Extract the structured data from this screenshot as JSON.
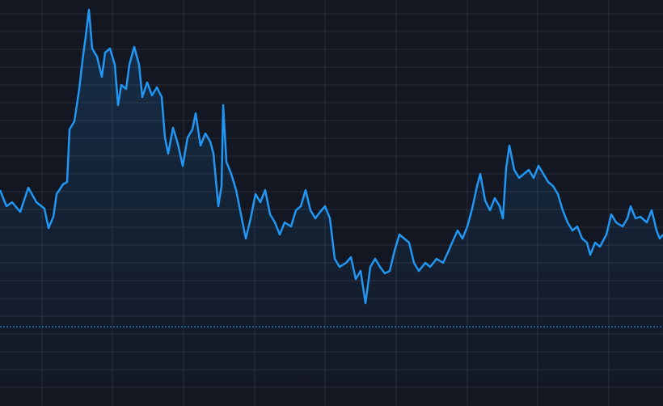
{
  "chart_data": {
    "type": "area-line",
    "color": "#2196f3",
    "x": [
      0,
      8,
      15,
      25,
      35,
      45,
      55,
      60,
      66,
      70,
      78,
      83,
      86,
      92,
      98,
      102,
      106,
      110,
      114,
      120,
      126,
      130,
      136,
      142,
      146,
      150,
      156,
      160,
      166,
      172,
      176,
      182,
      188,
      194,
      200,
      204,
      208,
      214,
      220,
      226,
      232,
      238,
      242,
      248,
      254,
      260,
      264,
      270,
      274,
      276,
      280,
      286,
      292,
      298,
      304,
      310,
      316,
      322,
      328,
      334,
      340,
      346,
      352,
      360,
      366,
      372,
      378,
      384,
      390,
      396,
      402,
      408,
      414,
      420,
      428,
      434,
      440,
      446,
      452,
      458,
      464,
      470,
      476,
      482,
      488,
      494,
      500,
      506,
      512,
      518,
      526,
      532,
      540,
      548,
      554,
      560,
      566,
      572,
      578,
      584,
      590,
      594,
      600,
      606,
      612,
      618,
      622,
      626,
      630,
      636,
      642,
      648,
      654,
      660,
      666,
      672,
      678,
      684,
      690,
      696,
      702,
      708,
      714,
      720,
      726,
      730,
      736,
      742,
      750,
      756,
      762,
      770,
      776,
      780,
      786,
      792,
      800,
      806,
      812,
      816,
      820
    ],
    "values": [
      267,
      247,
      252,
      240,
      270,
      252,
      244,
      220,
      234,
      262,
      274,
      277,
      342,
      352,
      392,
      427,
      457,
      490,
      442,
      432,
      407,
      437,
      442,
      422,
      372,
      397,
      392,
      422,
      444,
      422,
      382,
      400,
      384,
      394,
      382,
      332,
      312,
      344,
      324,
      297,
      332,
      342,
      362,
      322,
      337,
      327,
      312,
      247,
      272,
      372,
      302,
      287,
      267,
      237,
      207,
      232,
      262,
      252,
      267,
      237,
      227,
      212,
      227,
      222,
      242,
      247,
      267,
      242,
      232,
      240,
      247,
      232,
      182,
      172,
      177,
      184,
      157,
      167,
      127,
      172,
      182,
      172,
      164,
      167,
      192,
      212,
      207,
      202,
      177,
      167,
      177,
      172,
      182,
      177,
      190,
      204,
      217,
      207,
      222,
      244,
      272,
      287,
      254,
      242,
      257,
      247,
      232,
      294,
      322,
      292,
      282,
      287,
      292,
      282,
      297,
      287,
      277,
      272,
      262,
      242,
      227,
      217,
      222,
      207,
      202,
      187,
      202,
      197,
      212,
      237,
      227,
      222,
      232,
      247,
      232,
      234,
      227,
      242,
      217,
      207,
      212
    ],
    "reference_line": 98,
    "xlim": [
      0,
      820
    ],
    "ylim": [
      0,
      502
    ],
    "xticks": [
      52,
      139,
      227,
      315,
      402,
      490,
      578,
      665,
      753
    ],
    "yticks": [
      485,
      463,
      441,
      419,
      397,
      375,
      353,
      331,
      309,
      287,
      265,
      243,
      221,
      199,
      177,
      155,
      133,
      111,
      89,
      67,
      45,
      23
    ],
    "grid": true
  }
}
